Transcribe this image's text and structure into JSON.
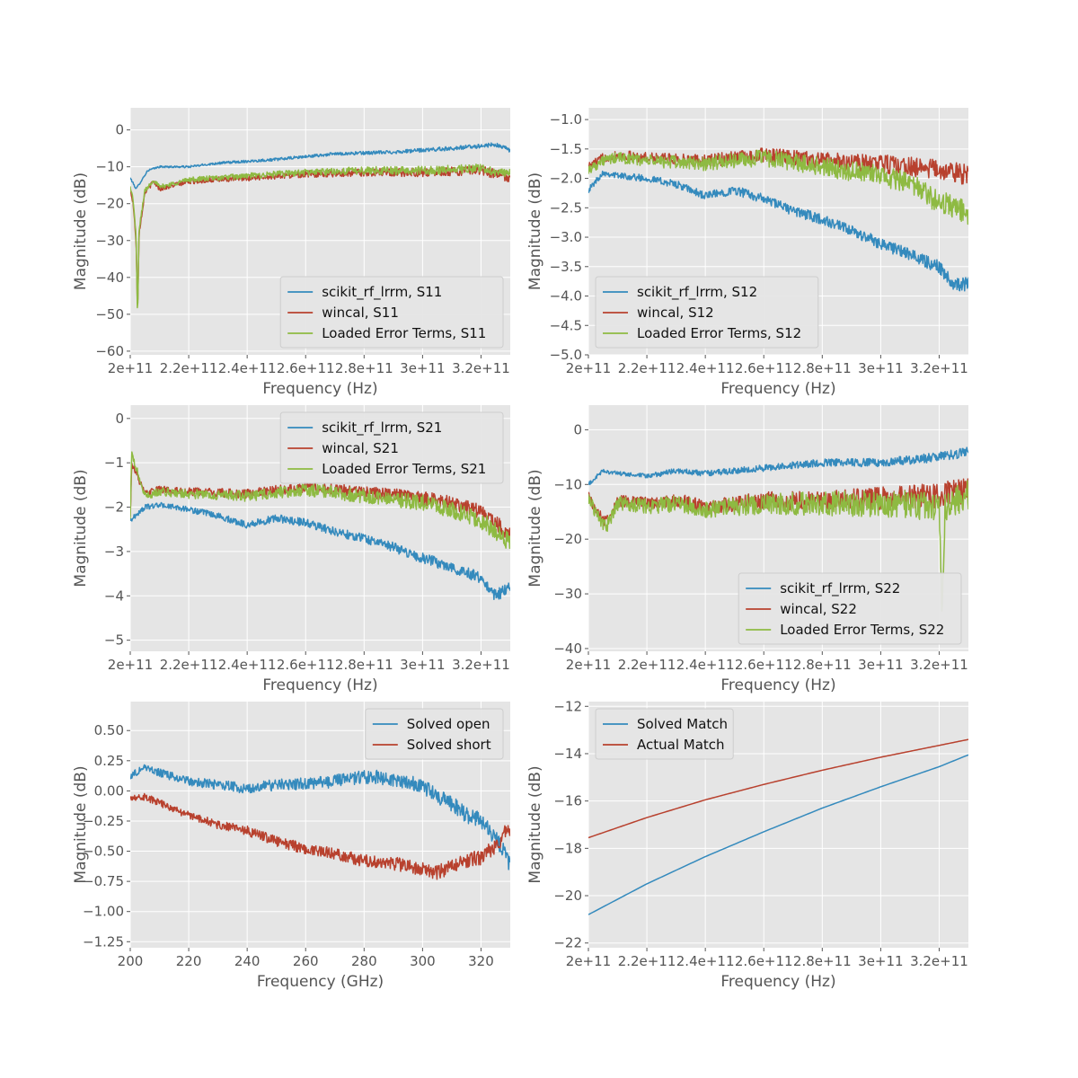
{
  "colors": {
    "blue": "#348ABD",
    "red": "#B8412E",
    "green": "#8EBA42"
  },
  "chart_data": [
    {
      "type": "line",
      "xlabel": "Frequency (Hz)",
      "ylabel": "Magnitude (dB)",
      "xlim": [
        200000000000.0,
        330000000000.0
      ],
      "ylim": [
        -61,
        6
      ],
      "xticks": [
        200000000000.0,
        220000000000.0,
        240000000000.0,
        260000000000.0,
        280000000000.0,
        300000000000.0,
        320000000000.0
      ],
      "xtick_labels": [
        "2e+11",
        "2.2e+11",
        "2.4e+11",
        "2.6e+11",
        "2.8e+11",
        "3e+11",
        "3.2e+11"
      ],
      "yticks": [
        0,
        -10,
        -20,
        -30,
        -40,
        -50,
        -60
      ],
      "ytick_labels": [
        "0",
        "−10",
        "−20",
        "−30",
        "−40",
        "−50",
        "−60"
      ],
      "legend_position": "lower-right",
      "series": [
        {
          "name": "scikit_rf_lrrm, S11",
          "color": "#348ABD",
          "noise": 0.4,
          "x": [
            200000000000.0,
            202000000000.0,
            206000000000.0,
            210000000000.0,
            220000000000.0,
            230000000000.0,
            250000000000.0,
            270000000000.0,
            290000000000.0,
            310000000000.0,
            325000000000.0,
            330000000000.0
          ],
          "y": [
            -13,
            -16,
            -11,
            -10,
            -10,
            -9,
            -8,
            -6.5,
            -6,
            -5,
            -4,
            -5.5
          ]
        },
        {
          "name": "wincal, S11",
          "color": "#B8412E",
          "noise": 0.9,
          "x": [
            200000000000.0,
            201000000000.0,
            202000000000.0,
            202500000000.0,
            203000000000.0,
            205000000000.0,
            208000000000.0,
            210000000000.0,
            220000000000.0,
            240000000000.0,
            260000000000.0,
            280000000000.0,
            300000000000.0,
            320000000000.0,
            330000000000.0
          ],
          "y": [
            -16,
            -20,
            -30,
            -50,
            -28,
            -17,
            -14,
            -16,
            -14,
            -13,
            -12,
            -11.5,
            -11.5,
            -11,
            -13
          ]
        },
        {
          "name": "Loaded Error Terms, S11",
          "color": "#8EBA42",
          "noise": 0.9,
          "x": [
            200000000000.0,
            201000000000.0,
            202000000000.0,
            202500000000.0,
            203000000000.0,
            205000000000.0,
            208000000000.0,
            210000000000.0,
            220000000000.0,
            240000000000.0,
            260000000000.0,
            280000000000.0,
            300000000000.0,
            320000000000.0,
            330000000000.0
          ],
          "y": [
            -15.5,
            -19,
            -29,
            -52,
            -27,
            -16.5,
            -13.5,
            -15.5,
            -13.5,
            -12.5,
            -11.5,
            -11,
            -11,
            -10.5,
            -12
          ]
        }
      ]
    },
    {
      "type": "line",
      "xlabel": "Frequency (Hz)",
      "ylabel": "Magnitude (dB)",
      "xlim": [
        200000000000.0,
        330000000000.0
      ],
      "ylim": [
        -5.0,
        -0.8
      ],
      "xticks": [
        200000000000.0,
        220000000000.0,
        240000000000.0,
        260000000000.0,
        280000000000.0,
        300000000000.0,
        320000000000.0
      ],
      "xtick_labels": [
        "2e+11",
        "2.2e+11",
        "2.4e+11",
        "2.6e+11",
        "2.8e+11",
        "3e+11",
        "3.2e+11"
      ],
      "yticks": [
        -1.0,
        -1.5,
        -2.0,
        -2.5,
        -3.0,
        -3.5,
        -4.0,
        -4.5,
        -5.0
      ],
      "ytick_labels": [
        "−1.0",
        "−1.5",
        "−2.0",
        "−2.5",
        "−3.0",
        "−3.5",
        "−4.0",
        "−4.5",
        "−5.0"
      ],
      "legend_position": "lower-left",
      "series": [
        {
          "name": "scikit_rf_lrrm, S12",
          "color": "#348ABD",
          "noise": 0.08,
          "x": [
            200000000000.0,
            205000000000.0,
            210000000000.0,
            220000000000.0,
            230000000000.0,
            240000000000.0,
            250000000000.0,
            260000000000.0,
            270000000000.0,
            280000000000.0,
            290000000000.0,
            300000000000.0,
            310000000000.0,
            320000000000.0,
            325000000000.0,
            330000000000.0
          ],
          "y": [
            -2.2,
            -1.9,
            -1.95,
            -2.0,
            -2.1,
            -2.3,
            -2.2,
            -2.35,
            -2.55,
            -2.7,
            -2.9,
            -3.1,
            -3.3,
            -3.5,
            -3.8,
            -3.8
          ]
        },
        {
          "name": "wincal, S12",
          "color": "#B8412E",
          "noise": 0.12,
          "x": [
            200000000000.0,
            205000000000.0,
            210000000000.0,
            220000000000.0,
            240000000000.0,
            260000000000.0,
            280000000000.0,
            300000000000.0,
            310000000000.0,
            320000000000.0,
            330000000000.0
          ],
          "y": [
            -1.8,
            -1.65,
            -1.6,
            -1.65,
            -1.7,
            -1.6,
            -1.7,
            -1.75,
            -1.8,
            -1.85,
            -1.95
          ]
        },
        {
          "name": "Loaded Error Terms, S12",
          "color": "#8EBA42",
          "noise": 0.14,
          "x": [
            200000000000.0,
            205000000000.0,
            210000000000.0,
            220000000000.0,
            240000000000.0,
            260000000000.0,
            280000000000.0,
            300000000000.0,
            310000000000.0,
            320000000000.0,
            330000000000.0
          ],
          "y": [
            -1.85,
            -1.7,
            -1.65,
            -1.7,
            -1.75,
            -1.65,
            -1.8,
            -1.95,
            -2.1,
            -2.4,
            -2.6
          ]
        }
      ]
    },
    {
      "type": "line",
      "xlabel": "Frequency (Hz)",
      "ylabel": "Magnitude (dB)",
      "xlim": [
        200000000000.0,
        330000000000.0
      ],
      "ylim": [
        -5.25,
        0.3
      ],
      "xticks": [
        200000000000.0,
        220000000000.0,
        240000000000.0,
        260000000000.0,
        280000000000.0,
        300000000000.0,
        320000000000.0
      ],
      "xtick_labels": [
        "2e+11",
        "2.2e+11",
        "2.4e+11",
        "2.6e+11",
        "2.8e+11",
        "3e+11",
        "3.2e+11"
      ],
      "yticks": [
        0,
        -1,
        -2,
        -3,
        -4,
        -5
      ],
      "ytick_labels": [
        "0",
        "−1",
        "−2",
        "−3",
        "−4",
        "−5"
      ],
      "legend_position": "upper-right",
      "series": [
        {
          "name": "scikit_rf_lrrm, S21",
          "color": "#348ABD",
          "noise": 0.09,
          "x": [
            200000000000.0,
            205000000000.0,
            210000000000.0,
            220000000000.0,
            230000000000.0,
            240000000000.0,
            250000000000.0,
            260000000000.0,
            270000000000.0,
            280000000000.0,
            290000000000.0,
            300000000000.0,
            310000000000.0,
            320000000000.0,
            325000000000.0,
            330000000000.0
          ],
          "y": [
            -2.3,
            -2.0,
            -1.95,
            -2.05,
            -2.2,
            -2.4,
            -2.25,
            -2.35,
            -2.55,
            -2.7,
            -2.9,
            -3.15,
            -3.35,
            -3.6,
            -4.0,
            -3.8
          ]
        },
        {
          "name": "wincal, S21",
          "color": "#B8412E",
          "noise": 0.12,
          "x": [
            200000000000.0,
            200500000000.0,
            205000000000.0,
            210000000000.0,
            220000000000.0,
            240000000000.0,
            260000000000.0,
            280000000000.0,
            300000000000.0,
            310000000000.0,
            320000000000.0,
            330000000000.0
          ],
          "y": [
            -2.2,
            -1.0,
            -1.7,
            -1.6,
            -1.65,
            -1.7,
            -1.55,
            -1.65,
            -1.8,
            -1.9,
            -2.1,
            -2.6
          ]
        },
        {
          "name": "Loaded Error Terms, S21",
          "color": "#8EBA42",
          "noise": 0.14,
          "x": [
            200000000000.0,
            200500000000.0,
            205000000000.0,
            210000000000.0,
            220000000000.0,
            240000000000.0,
            260000000000.0,
            280000000000.0,
            300000000000.0,
            310000000000.0,
            320000000000.0,
            330000000000.0
          ],
          "y": [
            -2.25,
            -0.8,
            -1.75,
            -1.65,
            -1.7,
            -1.75,
            -1.6,
            -1.75,
            -1.9,
            -2.05,
            -2.3,
            -2.8
          ]
        }
      ]
    },
    {
      "type": "line",
      "xlabel": "Frequency (Hz)",
      "ylabel": "Magnitude (dB)",
      "xlim": [
        200000000000.0,
        330000000000.0
      ],
      "ylim": [
        -40.5,
        4.5
      ],
      "xticks": [
        200000000000.0,
        220000000000.0,
        240000000000.0,
        260000000000.0,
        280000000000.0,
        300000000000.0,
        320000000000.0
      ],
      "xtick_labels": [
        "2e+11",
        "2.2e+11",
        "2.4e+11",
        "2.6e+11",
        "2.8e+11",
        "3e+11",
        "3.2e+11"
      ],
      "yticks": [
        0,
        -10,
        -20,
        -30,
        -40
      ],
      "ytick_labels": [
        "0",
        "−10",
        "−20",
        "−30",
        "−40"
      ],
      "legend_position": "lower-right",
      "series": [
        {
          "name": "scikit_rf_lrrm, S22",
          "color": "#348ABD",
          "noise": 0.6,
          "x": [
            200000000000.0,
            205000000000.0,
            210000000000.0,
            220000000000.0,
            230000000000.0,
            240000000000.0,
            260000000000.0,
            280000000000.0,
            300000000000.0,
            320000000000.0,
            325000000000.0,
            330000000000.0
          ],
          "y": [
            -10,
            -7.5,
            -8,
            -8.5,
            -7.5,
            -8,
            -7,
            -6,
            -6,
            -5,
            -4.5,
            -4
          ]
        },
        {
          "name": "wincal, S22",
          "color": "#B8412E",
          "noise": 1.6,
          "x": [
            200000000000.0,
            203000000000.0,
            206000000000.0,
            210000000000.0,
            220000000000.0,
            230000000000.0,
            240000000000.0,
            260000000000.0,
            280000000000.0,
            300000000000.0,
            320000000000.0,
            330000000000.0
          ],
          "y": [
            -12,
            -15,
            -17,
            -13,
            -13.5,
            -13,
            -14,
            -13,
            -13,
            -12.5,
            -12,
            -11
          ]
        },
        {
          "name": "Loaded Error Terms, S22",
          "color": "#8EBA42",
          "noise": 1.9,
          "x": [
            200000000000.0,
            203000000000.0,
            206000000000.0,
            210000000000.0,
            220000000000.0,
            230000000000.0,
            240000000000.0,
            260000000000.0,
            280000000000.0,
            300000000000.0,
            320000000000.0,
            321000000000.0,
            322000000000.0,
            330000000000.0
          ],
          "y": [
            -12.5,
            -15.5,
            -18,
            -13.5,
            -14,
            -13.5,
            -14.5,
            -13.5,
            -13.5,
            -13.5,
            -14,
            -34,
            -14,
            -12
          ]
        }
      ]
    },
    {
      "type": "line",
      "xlabel": "Frequency (GHz)",
      "ylabel": "Magnitude (dB)",
      "xlim": [
        200,
        330
      ],
      "ylim": [
        -1.3,
        0.74
      ],
      "xticks": [
        200,
        220,
        240,
        260,
        280,
        300,
        320
      ],
      "xtick_labels": [
        "200",
        "220",
        "240",
        "260",
        "280",
        "300",
        "320"
      ],
      "yticks": [
        0.5,
        0.25,
        0.0,
        -0.25,
        -0.5,
        -0.75,
        -1.0,
        -1.25
      ],
      "ytick_labels": [
        "0.50",
        "0.25",
        "0.00",
        "−0.25",
        "−0.50",
        "−0.75",
        "−1.00",
        "−1.25"
      ],
      "legend_position": "upper-right",
      "series": [
        {
          "name": "Solved open",
          "color": "#348ABD",
          "noise": 0.05,
          "x": [
            200,
            205,
            210,
            220,
            230,
            240,
            250,
            260,
            270,
            280,
            290,
            300,
            305,
            310,
            315,
            320,
            325,
            330
          ],
          "y": [
            0.12,
            0.2,
            0.15,
            0.08,
            0.05,
            0.02,
            0.05,
            0.06,
            0.08,
            0.12,
            0.1,
            0.05,
            -0.05,
            -0.1,
            -0.2,
            -0.25,
            -0.4,
            -0.6
          ]
        },
        {
          "name": "Solved short",
          "color": "#B8412E",
          "noise": 0.045,
          "x": [
            200,
            205,
            210,
            220,
            230,
            240,
            250,
            260,
            270,
            280,
            290,
            300,
            305,
            310,
            315,
            320,
            325,
            330
          ],
          "y": [
            -0.05,
            -0.05,
            -0.1,
            -0.2,
            -0.28,
            -0.33,
            -0.42,
            -0.48,
            -0.52,
            -0.58,
            -0.6,
            -0.65,
            -0.68,
            -0.62,
            -0.58,
            -0.55,
            -0.45,
            -0.3
          ]
        }
      ]
    },
    {
      "type": "line",
      "xlabel": "Frequency (Hz)",
      "ylabel": "Magnitude (dB)",
      "xlim": [
        200000000000.0,
        330000000000.0
      ],
      "ylim": [
        -22.2,
        -11.8
      ],
      "xticks": [
        200000000000.0,
        220000000000.0,
        240000000000.0,
        260000000000.0,
        280000000000.0,
        300000000000.0,
        320000000000.0
      ],
      "xtick_labels": [
        "2e+11",
        "2.2e+11",
        "2.4e+11",
        "2.6e+11",
        "2.8e+11",
        "3e+11",
        "3.2e+11"
      ],
      "yticks": [
        -12,
        -14,
        -16,
        -18,
        -20,
        -22
      ],
      "ytick_labels": [
        "−12",
        "−14",
        "−16",
        "−18",
        "−20",
        "−22"
      ],
      "legend_position": "upper-left",
      "series": [
        {
          "name": "Solved Match",
          "color": "#348ABD",
          "noise": 0,
          "x": [
            200000000000.0,
            220000000000.0,
            240000000000.0,
            260000000000.0,
            280000000000.0,
            300000000000.0,
            320000000000.0,
            330000000000.0
          ],
          "y": [
            -20.8,
            -19.5,
            -18.35,
            -17.3,
            -16.3,
            -15.4,
            -14.55,
            -14.05
          ]
        },
        {
          "name": "Actual Match",
          "color": "#B8412E",
          "noise": 0,
          "x": [
            200000000000.0,
            220000000000.0,
            240000000000.0,
            260000000000.0,
            280000000000.0,
            300000000000.0,
            320000000000.0,
            330000000000.0
          ],
          "y": [
            -17.55,
            -16.7,
            -15.95,
            -15.3,
            -14.7,
            -14.15,
            -13.65,
            -13.4
          ]
        }
      ]
    }
  ]
}
